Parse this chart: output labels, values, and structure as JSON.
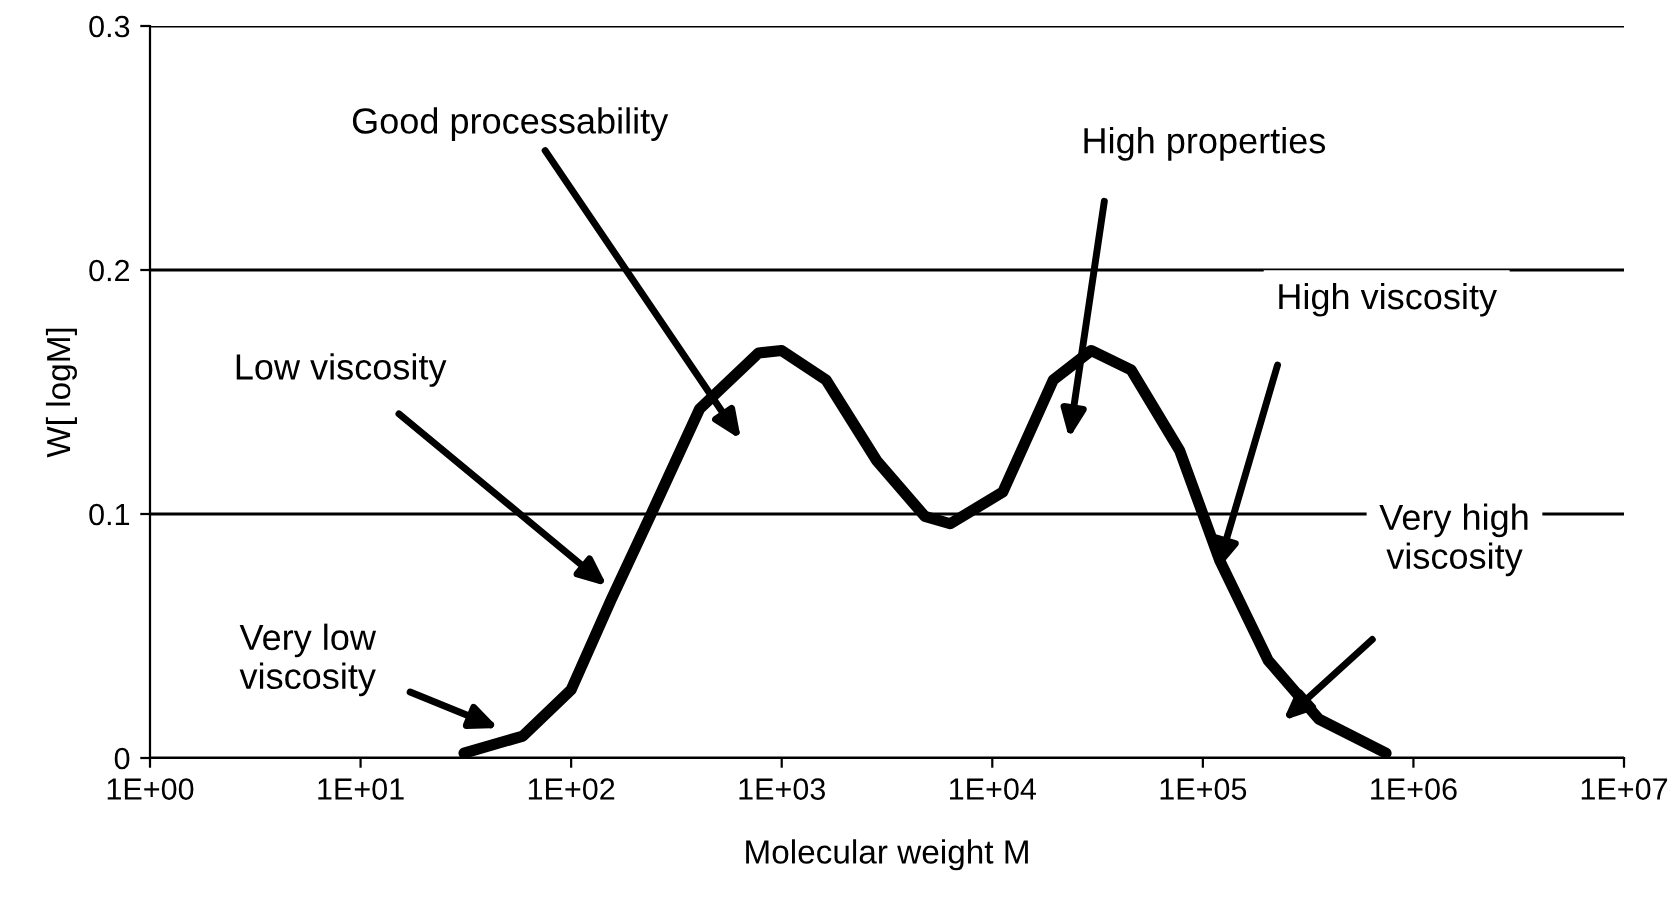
{
  "chart_data": {
    "type": "line",
    "xlabel": "Molecular weight M",
    "ylabel": "W[ logM]",
    "log": "x",
    "grid": "y",
    "marker": "none",
    "line_style": "solid",
    "xlim": [
      1,
      10000000
    ],
    "ylim": [
      0,
      0.3
    ],
    "xticks": [
      {
        "value": 1,
        "label": "1E+00"
      },
      {
        "value": 10,
        "label": "1E+01"
      },
      {
        "value": 100,
        "label": "1E+02"
      },
      {
        "value": 1000,
        "label": "1E+03"
      },
      {
        "value": 10000,
        "label": "1E+04"
      },
      {
        "value": 100000,
        "label": "1E+05"
      },
      {
        "value": 1000000,
        "label": "1E+06"
      },
      {
        "value": 10000000,
        "label": "1E+07"
      }
    ],
    "yticks": [
      0,
      0.1,
      0.2,
      0.3
    ],
    "series": [
      {
        "color": "#000000",
        "x": [
          31,
          59,
          100,
          155,
          240,
          407,
          776,
          1000,
          1622,
          2818,
          4786,
          6310,
          11220,
          19500,
          29510,
          45710,
          77620,
          120200,
          204200,
          354800,
          741300
        ],
        "values": [
          0.002,
          0.009,
          0.028,
          0.065,
          0.1,
          0.143,
          0.166,
          0.167,
          0.155,
          0.122,
          0.099,
          0.096,
          0.109,
          0.155,
          0.167,
          0.159,
          0.126,
          0.081,
          0.04,
          0.016,
          0.002
        ]
      }
    ],
    "annotations": [
      "Good processability",
      "High properties",
      "High viscosity",
      "Low viscosity",
      "Very low\nviscosity",
      "Very high\nviscosity"
    ]
  }
}
